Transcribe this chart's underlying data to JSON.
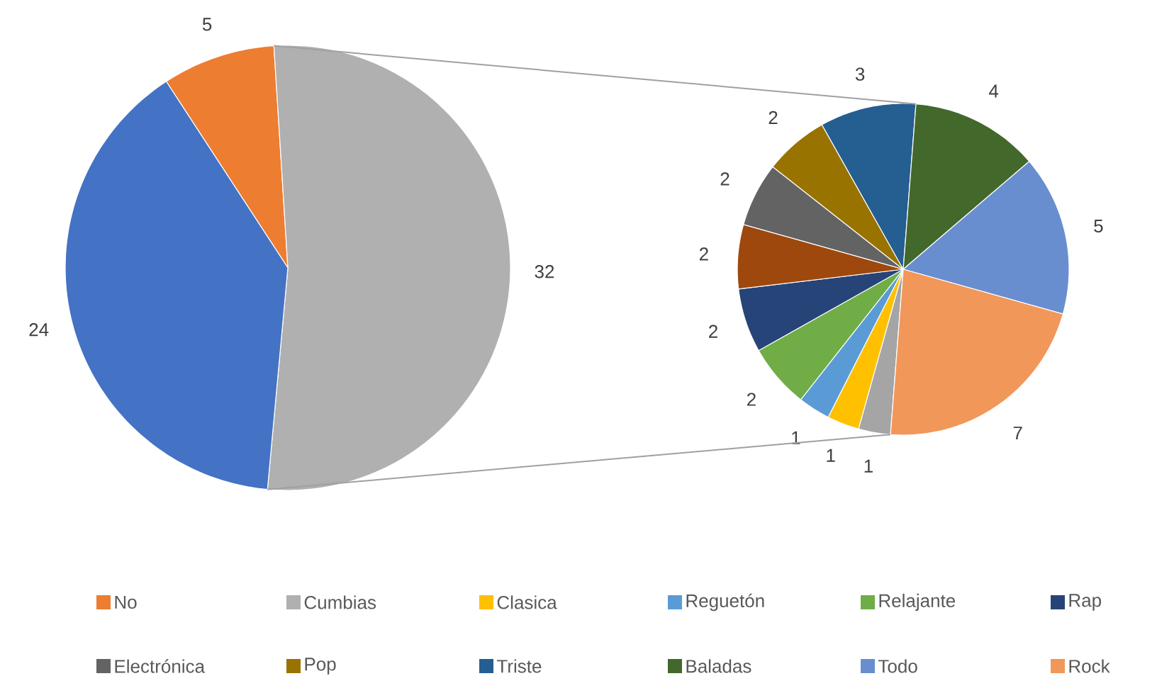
{
  "chart_data": [
    {
      "type": "pie",
      "categories": [
        "No",
        "Cumbias",
        null
      ],
      "values": [
        5,
        32,
        24
      ],
      "colors": [
        "#ed7d31",
        "#b0b0b0",
        "#4472c4"
      ],
      "data_labels": true,
      "legend": "bottom"
    },
    {
      "type": "pie",
      "categories": [
        null,
        "Clasica",
        "Reguetón",
        "Relajante",
        "Rap",
        null,
        "Electrónica",
        "Pop",
        "Triste",
        "Baladas",
        "Todo",
        "Rock"
      ],
      "values": [
        1,
        1,
        1,
        2,
        2,
        2,
        2,
        2,
        3,
        4,
        5,
        7
      ],
      "colors": [
        "#a5a5a5",
        "#ffc000",
        "#5b9bd5",
        "#70ad47",
        "#264478",
        "#9e480e",
        "#636363",
        "#997300",
        "#255e91",
        "#43682b",
        "#698ed0",
        "#f1975a"
      ],
      "data_labels": true,
      "legend": "bottom"
    }
  ]
}
